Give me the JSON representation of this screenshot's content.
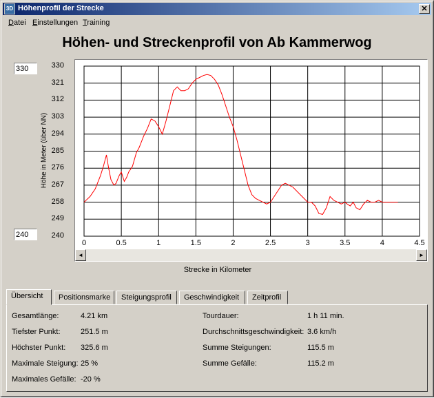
{
  "window": {
    "title": "Höhenprofil der Strecke",
    "app_icon": "3D",
    "close_glyph": "✕"
  },
  "menu": [
    "Datei",
    "Einstellungen",
    "Training"
  ],
  "heading": "Höhen- und Streckenprofil von Ab Kammerwog",
  "inputs": {
    "ymax": "330",
    "ymin": "240"
  },
  "scrollbar": {
    "left_arrow": "◄",
    "right_arrow": "►"
  },
  "chart_data": {
    "type": "line",
    "xlabel": "Strecke in Kilometer",
    "ylabel": "Höhe in Meter (über NN)",
    "xlim": [
      0,
      4.5
    ],
    "ylim": [
      240,
      330
    ],
    "x_ticks": [
      "0",
      "0.5",
      "1",
      "1.5",
      "2",
      "2.5",
      "3",
      "3.5",
      "4",
      "4.5"
    ],
    "y_ticks": [
      "330",
      "321",
      "312",
      "303",
      "294",
      "285",
      "276",
      "267",
      "258",
      "249",
      "240"
    ],
    "grid": true,
    "color": "#ff0000",
    "x": [
      0,
      0.08,
      0.15,
      0.22,
      0.26,
      0.3,
      0.33,
      0.36,
      0.4,
      0.43,
      0.47,
      0.5,
      0.54,
      0.57,
      0.6,
      0.65,
      0.7,
      0.74,
      0.8,
      0.85,
      0.9,
      0.95,
      1.0,
      1.05,
      1.1,
      1.15,
      1.2,
      1.25,
      1.3,
      1.35,
      1.4,
      1.45,
      1.5,
      1.55,
      1.6,
      1.65,
      1.7,
      1.75,
      1.8,
      1.85,
      1.9,
      1.95,
      2.0,
      2.05,
      2.1,
      2.15,
      2.2,
      2.25,
      2.3,
      2.35,
      2.4,
      2.45,
      2.5,
      2.55,
      2.6,
      2.65,
      2.7,
      2.75,
      2.8,
      2.85,
      2.9,
      2.95,
      3.0,
      3.05,
      3.1,
      3.15,
      3.2,
      3.25,
      3.3,
      3.35,
      3.4,
      3.45,
      3.5,
      3.53,
      3.57,
      3.61,
      3.65,
      3.7,
      3.75,
      3.8,
      3.85,
      3.9,
      3.95,
      4.0,
      4.05,
      4.1,
      4.15,
      4.21
    ],
    "y": [
      258,
      261,
      265,
      272,
      277,
      283,
      276,
      270,
      267,
      268,
      272,
      274,
      269,
      271,
      274,
      277,
      284,
      287,
      293,
      297,
      302,
      301,
      298,
      294,
      301,
      309,
      317,
      319,
      317,
      317,
      318,
      321,
      323,
      324,
      325,
      325.6,
      325,
      323,
      320,
      315,
      309,
      303,
      298,
      291,
      283,
      275,
      267,
      262,
      260,
      259,
      258,
      257,
      258,
      261,
      264,
      267,
      268,
      267,
      266,
      264,
      262,
      260,
      258,
      258,
      256,
      252,
      251.5,
      255,
      261,
      259,
      258,
      257,
      258,
      257,
      256,
      258,
      255,
      254,
      257,
      259,
      258,
      258,
      259,
      258,
      258,
      258,
      258,
      258
    ]
  },
  "tabs": [
    "Übersicht",
    "Positionsmarke",
    "Steigungsprofil",
    "Geschwindigkeit",
    "Zeitprofil"
  ],
  "stats_left": [
    {
      "label": "Gesamtlänge:",
      "value": "4.21 km"
    },
    {
      "label": "Tiefster Punkt:",
      "value": "251.5 m"
    },
    {
      "label": "Höchster Punkt:",
      "value": "325.6 m"
    },
    {
      "label": "Maximale Steigung:",
      "value": "25 %"
    },
    {
      "label": "Maximales Gefälle:",
      "value": "-20 %"
    }
  ],
  "stats_right": [
    {
      "label": "Tourdauer:",
      "value": "1 h 11 min."
    },
    {
      "label": "Durchschnittsgeschwindigkeit:",
      "value": "3.6 km/h"
    },
    {
      "label": "Summe Steigungen:",
      "value": "115.5 m"
    },
    {
      "label": "Summe Gefälle:",
      "value": "115.2 m"
    }
  ]
}
